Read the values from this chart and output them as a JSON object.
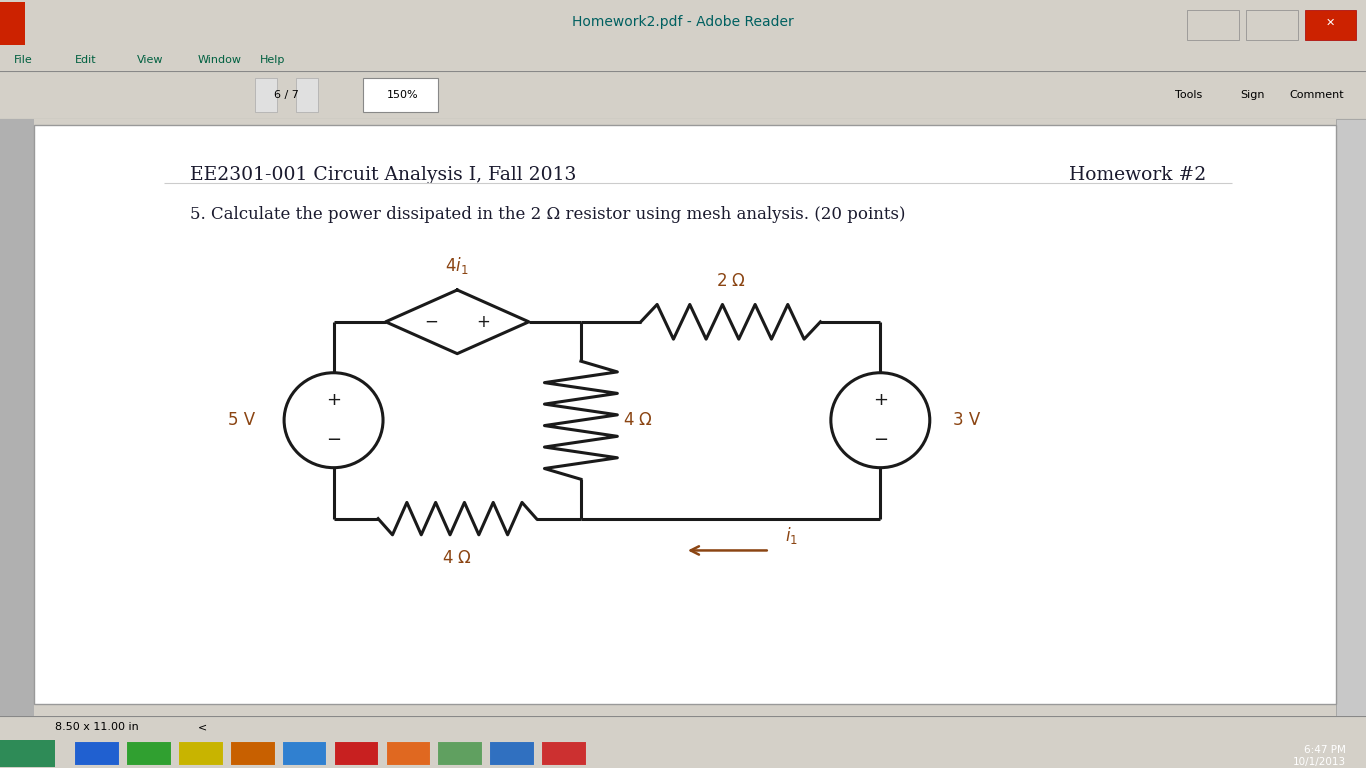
{
  "title_left": "EE2301-001 Circuit Analysis I, Fall 2013",
  "title_right": "Homework #2",
  "problem_text": "5. Calculate the power dissipated in the 2 Ω resistor using mesh analysis. (20 points)",
  "bg_color": "#ffffff",
  "text_color": "#1a1a2e",
  "circuit_color": "#1a1a1a",
  "label_color": "#8B4513",
  "window_title": "Homework2.pdf - Adobe Reader",
  "window_title_color": "#006060",
  "title_bar_color": "#55d4e8",
  "menubar_color": "#d4d0c8",
  "toolbar_color": "#d4d0c8",
  "content_bg": "#ffffff",
  "left_panel_color": "#c0c0c0",
  "scrollbar_color": "#c0c0c0",
  "statusbar_color": "#d4d0c8",
  "taskbar_color": "#1e6eb5",
  "statusbar_text": "8.50 x 11.00 in",
  "time_text": "6:47 PM\n10/1/2013",
  "page_info": "6 / 7",
  "zoom_info": "150%",
  "close_btn_color": "#cc0000",
  "window_border_color": "#888888"
}
